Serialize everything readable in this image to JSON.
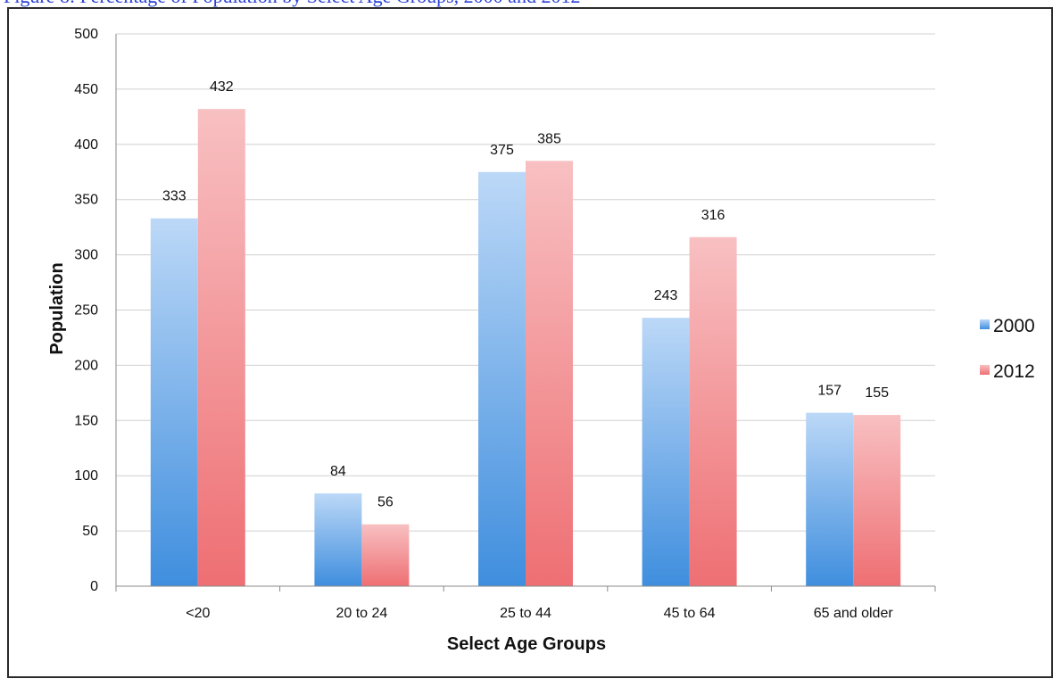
{
  "caption": {
    "text": "Figure 8: Percentage of Population by Select Age Groups, 2000 and 2012"
  },
  "chart_data": {
    "type": "bar",
    "title": "",
    "xlabel": "Select Age Groups",
    "ylabel": "Population",
    "ylim": [
      0,
      500
    ],
    "yticks": [
      0,
      50,
      100,
      150,
      200,
      250,
      300,
      350,
      400,
      450,
      500
    ],
    "grid": true,
    "legend_position": "right",
    "categories": [
      "<20",
      "20 to 24",
      "25 to 44",
      "45 to 64",
      "65 and older"
    ],
    "series": [
      {
        "name": "2000",
        "values": [
          333,
          84,
          375,
          243,
          157
        ],
        "color": "#4f93e0"
      },
      {
        "name": "2012",
        "values": [
          432,
          56,
          385,
          316,
          155
        ],
        "color": "#f17f82"
      }
    ]
  }
}
